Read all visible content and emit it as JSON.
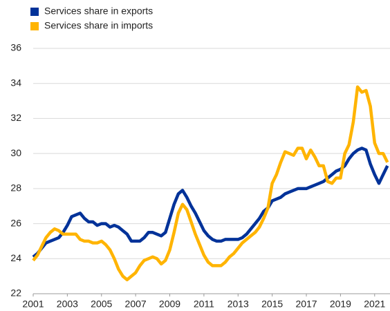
{
  "chart_data": {
    "type": "line",
    "x": [
      2001,
      2001.25,
      2001.5,
      2001.75,
      2002,
      2002.25,
      2002.5,
      2002.75,
      2003,
      2003.25,
      2003.5,
      2003.75,
      2004,
      2004.25,
      2004.5,
      2004.75,
      2005,
      2005.25,
      2005.5,
      2005.75,
      2006,
      2006.25,
      2006.5,
      2006.75,
      2007,
      2007.25,
      2007.5,
      2007.75,
      2008,
      2008.25,
      2008.5,
      2008.75,
      2009,
      2009.25,
      2009.5,
      2009.75,
      2010,
      2010.25,
      2010.5,
      2010.75,
      2011,
      2011.25,
      2011.5,
      2011.75,
      2012,
      2012.25,
      2012.5,
      2012.75,
      2013,
      2013.25,
      2013.5,
      2013.75,
      2014,
      2014.25,
      2014.5,
      2014.75,
      2015,
      2015.25,
      2015.5,
      2015.75,
      2016,
      2016.25,
      2016.5,
      2016.75,
      2017,
      2017.25,
      2017.5,
      2017.75,
      2018,
      2018.25,
      2018.5,
      2018.75,
      2019,
      2019.25,
      2019.5,
      2019.75,
      2020,
      2020.25,
      2020.5,
      2020.75,
      2021,
      2021.25,
      2021.5,
      2021.75
    ],
    "series": [
      {
        "name": "Services share in exports",
        "color": "#003299",
        "values": [
          24.1,
          24.3,
          24.6,
          24.9,
          25.0,
          25.1,
          25.2,
          25.5,
          25.9,
          26.4,
          26.5,
          26.6,
          26.3,
          26.1,
          26.1,
          25.9,
          26.0,
          26.0,
          25.8,
          25.9,
          25.8,
          25.6,
          25.4,
          25.0,
          25.0,
          25.0,
          25.2,
          25.5,
          25.5,
          25.4,
          25.3,
          25.5,
          26.3,
          27.1,
          27.7,
          27.9,
          27.5,
          27.0,
          26.6,
          26.1,
          25.6,
          25.3,
          25.1,
          25.0,
          25.0,
          25.1,
          25.1,
          25.1,
          25.1,
          25.2,
          25.4,
          25.7,
          26.0,
          26.3,
          26.7,
          26.9,
          27.3,
          27.4,
          27.5,
          27.7,
          27.8,
          27.9,
          28.0,
          28.0,
          28.0,
          28.1,
          28.2,
          28.3,
          28.4,
          28.6,
          28.8,
          29.0,
          29.1,
          29.3,
          29.7,
          30.0,
          30.2,
          30.3,
          30.2,
          29.4,
          28.8,
          28.3,
          28.8,
          29.3
        ]
      },
      {
        "name": "Services share in imports",
        "color": "#ffb400",
        "values": [
          23.9,
          24.2,
          24.7,
          25.2,
          25.5,
          25.7,
          25.6,
          25.4,
          25.4,
          25.4,
          25.4,
          25.1,
          25.0,
          25.0,
          24.9,
          24.9,
          25.0,
          24.8,
          24.5,
          24.0,
          23.4,
          23.0,
          22.8,
          23.0,
          23.2,
          23.6,
          23.9,
          24.0,
          24.1,
          24.0,
          23.7,
          23.9,
          24.5,
          25.5,
          26.6,
          27.1,
          26.8,
          26.1,
          25.4,
          24.8,
          24.2,
          23.8,
          23.6,
          23.6,
          23.6,
          23.8,
          24.1,
          24.3,
          24.6,
          24.9,
          25.1,
          25.3,
          25.5,
          25.8,
          26.3,
          26.9,
          28.3,
          28.8,
          29.5,
          30.1,
          30.0,
          29.9,
          30.3,
          30.3,
          29.7,
          30.2,
          29.8,
          29.3,
          29.3,
          28.4,
          28.3,
          28.6,
          28.6,
          30.0,
          30.5,
          31.8,
          33.8,
          33.5,
          33.6,
          32.7,
          30.6,
          30.0,
          30.0,
          29.5
        ]
      }
    ],
    "xlim": [
      2001,
      2021.9
    ],
    "xticks": [
      2001,
      2003,
      2005,
      2007,
      2009,
      2011,
      2013,
      2015,
      2017,
      2019,
      2021
    ],
    "ylim": [
      22,
      36
    ],
    "yticks": [
      22,
      24,
      26,
      28,
      30,
      32,
      34,
      36
    ],
    "grid": true
  }
}
